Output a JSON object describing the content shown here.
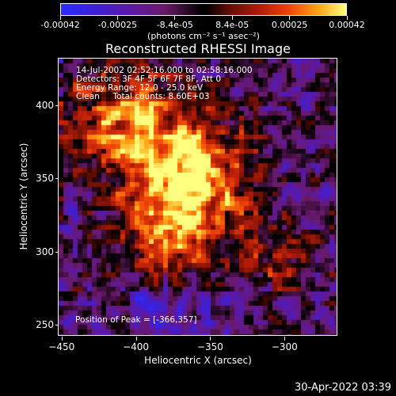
{
  "colorbar": {
    "tick_labels": [
      "-0.00042",
      "-0.00025",
      "-8.4e-05",
      "8.4e-05",
      "0.00025",
      "0.00042"
    ],
    "units": "(photons cm⁻² s⁻¹ asec⁻²)",
    "min": -0.00042,
    "max": 0.00042
  },
  "chart_data": {
    "type": "heatmap",
    "title": "Reconstructed RHESSI Image",
    "xlabel": "Heliocentric X (arcsec)",
    "ylabel": "Heliocentric Y (arcsec)",
    "xlim": [
      -452,
      -265
    ],
    "ylim": [
      243,
      432
    ],
    "x_ticks": [
      -450,
      -400,
      -350,
      -300
    ],
    "y_ticks": [
      250,
      300,
      350,
      400
    ],
    "peak": [
      -366,
      357
    ],
    "annotations": [
      "14-Jul-2002 02:52:16.000 to 02:58:16.000",
      "Detectors: 3F 4F 5F 6F 7F 8F, Att 0",
      "Energy Range: 12.0 - 25.0 keV",
      "Clean     Total counts: 8.60E+03"
    ],
    "peak_label": "Position of Peak = [-366,357]"
  },
  "footer": {
    "timestamp": "30-Apr-2022 03:39"
  }
}
